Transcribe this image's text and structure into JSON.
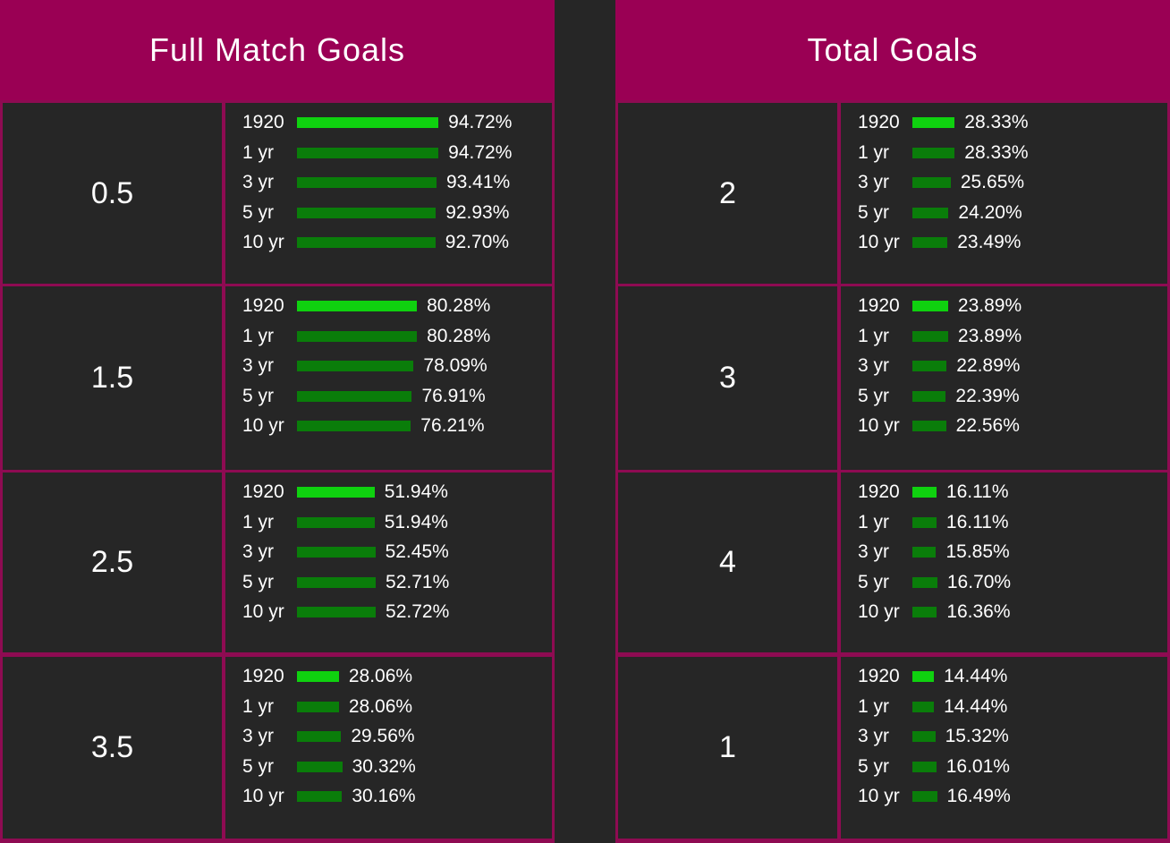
{
  "panels": [
    {
      "title": "Full Match Goals",
      "rows": [
        {
          "label": "0.5",
          "stats": [
            {
              "period": "1920",
              "pct": "94.72%",
              "value": 94.72
            },
            {
              "period": "1 yr",
              "pct": "94.72%",
              "value": 94.72
            },
            {
              "period": "3 yr",
              "pct": "93.41%",
              "value": 93.41
            },
            {
              "period": "5 yr",
              "pct": "92.93%",
              "value": 92.93
            },
            {
              "period": "10 yr",
              "pct": "92.70%",
              "value": 92.7
            }
          ]
        },
        {
          "label": "1.5",
          "stats": [
            {
              "period": "1920",
              "pct": "80.28%",
              "value": 80.28
            },
            {
              "period": "1 yr",
              "pct": "80.28%",
              "value": 80.28
            },
            {
              "period": "3 yr",
              "pct": "78.09%",
              "value": 78.09
            },
            {
              "period": "5 yr",
              "pct": "76.91%",
              "value": 76.91
            },
            {
              "period": "10 yr",
              "pct": "76.21%",
              "value": 76.21
            }
          ]
        },
        {
          "label": "2.5",
          "stats": [
            {
              "period": "1920",
              "pct": "51.94%",
              "value": 51.94
            },
            {
              "period": "1 yr",
              "pct": "51.94%",
              "value": 51.94
            },
            {
              "period": "3 yr",
              "pct": "52.45%",
              "value": 52.45
            },
            {
              "period": "5 yr",
              "pct": "52.71%",
              "value": 52.71
            },
            {
              "period": "10 yr",
              "pct": "52.72%",
              "value": 52.72
            }
          ]
        },
        {
          "label": "3.5",
          "stats": [
            {
              "period": "1920",
              "pct": "28.06%",
              "value": 28.06
            },
            {
              "period": "1 yr",
              "pct": "28.06%",
              "value": 28.06
            },
            {
              "period": "3 yr",
              "pct": "29.56%",
              "value": 29.56
            },
            {
              "period": "5 yr",
              "pct": "30.32%",
              "value": 30.32
            },
            {
              "period": "10 yr",
              "pct": "30.16%",
              "value": 30.16
            }
          ]
        }
      ]
    },
    {
      "title": "Total Goals",
      "rows": [
        {
          "label": "2",
          "stats": [
            {
              "period": "1920",
              "pct": "28.33%",
              "value": 28.33
            },
            {
              "period": "1 yr",
              "pct": "28.33%",
              "value": 28.33
            },
            {
              "period": "3 yr",
              "pct": "25.65%",
              "value": 25.65
            },
            {
              "period": "5 yr",
              "pct": "24.20%",
              "value": 24.2
            },
            {
              "period": "10 yr",
              "pct": "23.49%",
              "value": 23.49
            }
          ]
        },
        {
          "label": "3",
          "stats": [
            {
              "period": "1920",
              "pct": "23.89%",
              "value": 23.89
            },
            {
              "period": "1 yr",
              "pct": "23.89%",
              "value": 23.89
            },
            {
              "period": "3 yr",
              "pct": "22.89%",
              "value": 22.89
            },
            {
              "period": "5 yr",
              "pct": "22.39%",
              "value": 22.39
            },
            {
              "period": "10 yr",
              "pct": "22.56%",
              "value": 22.56
            }
          ]
        },
        {
          "label": "4",
          "stats": [
            {
              "period": "1920",
              "pct": "16.11%",
              "value": 16.11
            },
            {
              "period": "1 yr",
              "pct": "16.11%",
              "value": 16.11
            },
            {
              "period": "3 yr",
              "pct": "15.85%",
              "value": 15.85
            },
            {
              "period": "5 yr",
              "pct": "16.70%",
              "value": 16.7
            },
            {
              "period": "10 yr",
              "pct": "16.36%",
              "value": 16.36
            }
          ]
        },
        {
          "label": "1",
          "stats": [
            {
              "period": "1920",
              "pct": "14.44%",
              "value": 14.44
            },
            {
              "period": "1 yr",
              "pct": "14.44%",
              "value": 14.44
            },
            {
              "period": "3 yr",
              "pct": "15.32%",
              "value": 15.32
            },
            {
              "period": "5 yr",
              "pct": "16.01%",
              "value": 16.01
            },
            {
              "period": "10 yr",
              "pct": "16.49%",
              "value": 16.49
            }
          ]
        }
      ]
    }
  ],
  "colors": {
    "panel_border": "#8e0b52",
    "header_bg": "#9a0054",
    "cell_bg": "#262626",
    "bar_highlight": "#0fd10f",
    "bar_normal": "#0a7d0a"
  }
}
